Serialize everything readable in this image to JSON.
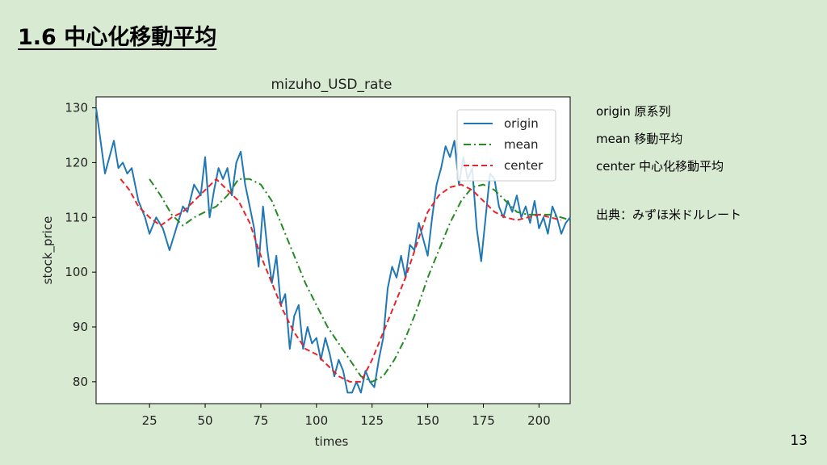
{
  "slide": {
    "title": "1.6 中心化移動平均",
    "page_number": "13",
    "notes": [
      "origin 原系列",
      "mean 移動平均",
      "center 中心化移動平均"
    ],
    "source": "出典：みずほ米ドルレート"
  },
  "chart_data": {
    "type": "line",
    "title": "mizuho_USD_rate",
    "xlabel": "times",
    "ylabel": "stock_price",
    "xlim": [
      1,
      214
    ],
    "ylim": [
      76,
      132
    ],
    "xticks": [
      25,
      50,
      75,
      100,
      125,
      150,
      175,
      200
    ],
    "yticks": [
      80,
      90,
      100,
      110,
      120,
      130
    ],
    "grid": false,
    "legend_position": "top-right",
    "series": [
      {
        "name": "origin",
        "color": "#1f77b4",
        "dash": "solid",
        "x": [
          1,
          3,
          5,
          7,
          9,
          11,
          13,
          15,
          17,
          20,
          23,
          25,
          28,
          31,
          34,
          37,
          40,
          42,
          45,
          48,
          50,
          52,
          54,
          56,
          58,
          60,
          62,
          64,
          66,
          68,
          70,
          72,
          74,
          76,
          78,
          80,
          82,
          84,
          86,
          88,
          90,
          92,
          94,
          96,
          98,
          100,
          102,
          104,
          106,
          108,
          110,
          112,
          114,
          116,
          118,
          120,
          122,
          124,
          126,
          128,
          130,
          132,
          134,
          136,
          138,
          140,
          142,
          144,
          146,
          148,
          150,
          152,
          154,
          156,
          158,
          160,
          162,
          164,
          166,
          168,
          170,
          172,
          174,
          176,
          178,
          180,
          182,
          184,
          186,
          188,
          190,
          192,
          194,
          196,
          198,
          200,
          202,
          204,
          206,
          208,
          210,
          212,
          214
        ],
        "y": [
          130,
          124,
          118,
          121,
          124,
          119,
          120,
          118,
          119,
          113,
          110,
          107,
          110,
          108,
          104,
          108,
          112,
          111,
          116,
          114,
          121,
          110,
          115,
          119,
          117,
          119,
          114,
          120,
          122,
          116,
          112,
          108,
          101,
          112,
          104,
          98,
          103,
          94,
          96,
          86,
          92,
          94,
          86,
          90,
          87,
          88,
          84,
          88,
          85,
          81,
          84,
          82,
          78,
          78,
          80,
          78,
          82,
          80,
          79,
          84,
          88,
          97,
          101,
          99,
          103,
          99,
          105,
          104,
          109,
          106,
          103,
          110,
          116,
          119,
          123,
          121,
          124,
          116,
          121,
          117,
          119,
          108,
          102,
          110,
          118,
          117,
          112,
          110,
          113,
          111,
          114,
          110,
          112,
          109,
          113,
          108,
          110,
          107,
          112,
          110,
          107,
          109,
          110
        ]
      },
      {
        "name": "mean",
        "color": "#228b22",
        "dash": "dashdot",
        "x": [
          25,
          30,
          35,
          40,
          45,
          50,
          55,
          60,
          65,
          70,
          75,
          80,
          85,
          90,
          95,
          100,
          105,
          110,
          115,
          120,
          125,
          130,
          135,
          140,
          145,
          150,
          155,
          160,
          165,
          170,
          175,
          180,
          185,
          190,
          195,
          200,
          205,
          210,
          214
        ],
        "y": [
          117,
          114,
          110.5,
          108.5,
          110,
          111,
          112,
          114,
          117,
          117,
          116,
          113,
          108,
          103,
          98,
          94,
          90,
          87,
          84,
          81,
          80,
          81,
          84,
          88,
          93,
          99,
          104,
          109,
          113,
          115.5,
          116,
          115,
          113,
          111,
          110.5,
          110.5,
          110.5,
          110,
          109.5
        ]
      },
      {
        "name": "center",
        "color": "#e8232b",
        "dash": "dashed",
        "x": [
          12,
          16,
          20,
          25,
          30,
          35,
          40,
          45,
          50,
          55,
          60,
          65,
          70,
          75,
          80,
          85,
          90,
          95,
          100,
          105,
          110,
          115,
          120,
          125,
          130,
          135,
          140,
          145,
          150,
          155,
          160,
          165,
          170,
          175,
          180,
          185,
          190,
          195,
          200,
          205,
          210
        ],
        "y": [
          117,
          115,
          112,
          110,
          108.5,
          110,
          111,
          113,
          115,
          117,
          115,
          113,
          109,
          103,
          98,
          93,
          89,
          86,
          85,
          83,
          81,
          80,
          80,
          84,
          89,
          94,
          99,
          105,
          111,
          114,
          115.5,
          116,
          115,
          113,
          111,
          110,
          109.5,
          110,
          110.5,
          110,
          109.5
        ]
      }
    ]
  }
}
